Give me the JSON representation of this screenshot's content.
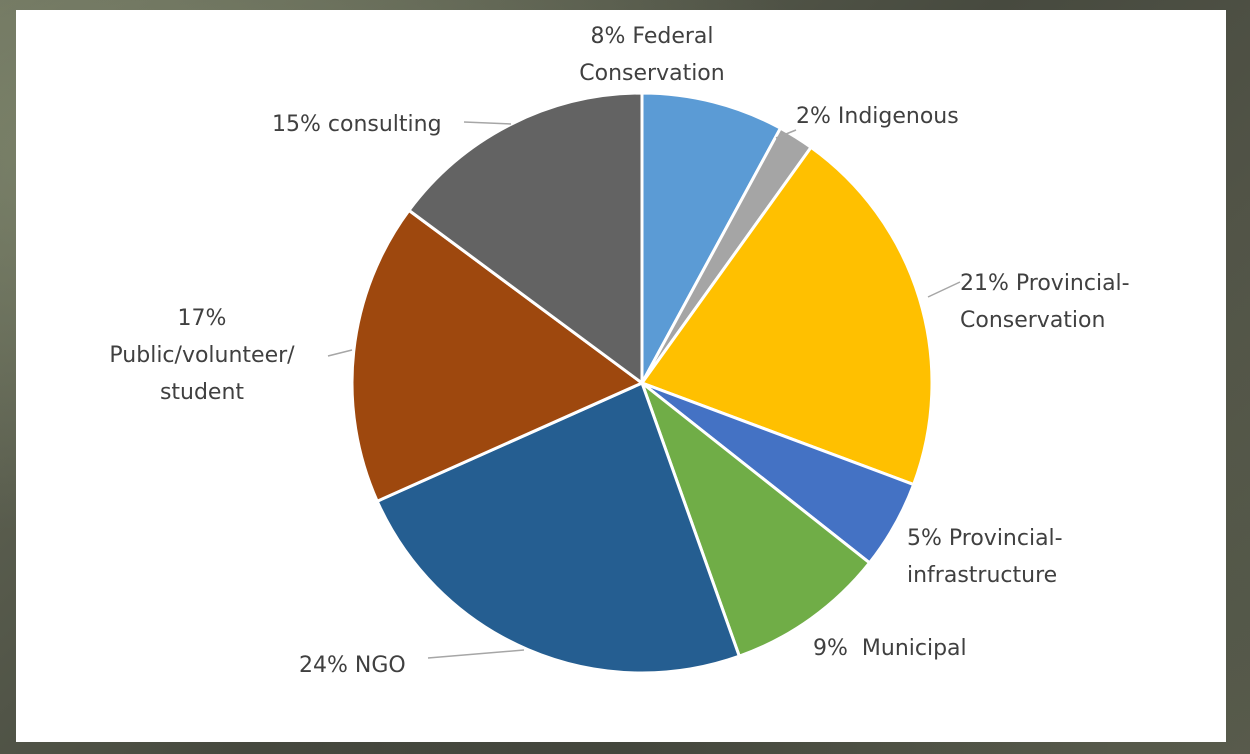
{
  "chart_data": {
    "type": "pie",
    "slices": [
      {
        "label": "8% Federal Conservation",
        "lines": [
          "8% Federal",
          "Conservation"
        ],
        "value": 8,
        "color": "#5B9BD5"
      },
      {
        "label": "2% Indigenous",
        "lines": [
          "2% Indigenous"
        ],
        "value": 2,
        "color": "#A5A5A5"
      },
      {
        "label": "21% Provincial-Conservation",
        "lines": [
          "21% Provincial-",
          "Conservation"
        ],
        "value": 21,
        "color": "#FFC000"
      },
      {
        "label": "5% Provincial-infrastructure",
        "lines": [
          "5% Provincial-",
          "infrastructure"
        ],
        "value": 5,
        "color": "#4472C4"
      },
      {
        "label": "9%  Municipal",
        "lines": [
          "9%  Municipal"
        ],
        "value": 9,
        "color": "#70AD47"
      },
      {
        "label": "24% NGO",
        "lines": [
          "24% NGO"
        ],
        "value": 24,
        "color": "#255E91"
      },
      {
        "label": "17% Public/volunteer/student",
        "lines": [
          "17%",
          "Public/volunteer/",
          "student"
        ],
        "value": 17,
        "color": "#9E480E"
      },
      {
        "label": "15% consulting",
        "lines": [
          "15% consulting"
        ],
        "value": 15,
        "color": "#636363"
      }
    ],
    "start_angle": "12 o'clock",
    "direction": "clockwise",
    "legend": "none"
  }
}
